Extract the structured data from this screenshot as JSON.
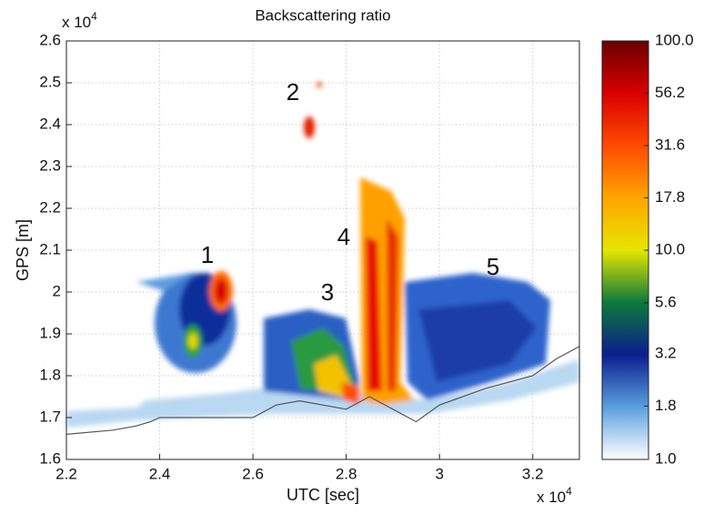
{
  "chart_data": {
    "type": "curtain",
    "title": "Backscattering ratio",
    "x_label": "UTC [sec]",
    "y_label": "GPS [m]",
    "x_multiplier": {
      "base": "x 10",
      "power": "4"
    },
    "y_multiplier": {
      "base": "x 10",
      "power": "4"
    },
    "xlim": [
      2.2,
      3.3
    ],
    "ylim": [
      1.6,
      2.6
    ],
    "xticks": [
      2.2,
      2.4,
      2.6,
      2.8,
      3,
      3.2
    ],
    "yticks": [
      1.6,
      1.7,
      1.8,
      1.9,
      2,
      2.1,
      2.2,
      2.3,
      2.4,
      2.5,
      2.6
    ],
    "grid": true,
    "colorbar": {
      "log": true,
      "clim": [
        1,
        100
      ],
      "ticks": [
        {
          "value": 1,
          "label": "1.0"
        },
        1.8,
        3.2,
        5.6,
        {
          "value": 10,
          "label": "10.0"
        },
        17.8,
        31.6,
        56.2,
        {
          "value": 100,
          "label": "100.0"
        }
      ],
      "colors": [
        "#ffffff",
        "#5a9fdf",
        "#0b1e8e",
        "#0b7a3a",
        "#e6e600",
        "#ffa500",
        "#ff4a00",
        "#d80000",
        "#6a0000"
      ]
    },
    "annotations": [
      "1",
      "2",
      "3",
      "4",
      "5"
    ],
    "ground": {
      "color": "#555555",
      "x": [
        2.2,
        2.3,
        2.35,
        2.38,
        2.4,
        2.6,
        2.65,
        2.7,
        2.8,
        2.85,
        2.9,
        2.95,
        3,
        3.1,
        3.2,
        3.25,
        3.3
      ],
      "values": [
        1.66,
        1.67,
        1.68,
        1.69,
        1.7,
        1.7,
        1.73,
        1.74,
        1.72,
        1.75,
        1.72,
        1.69,
        1.73,
        1.77,
        1.8,
        1.84,
        1.87
      ]
    }
  }
}
